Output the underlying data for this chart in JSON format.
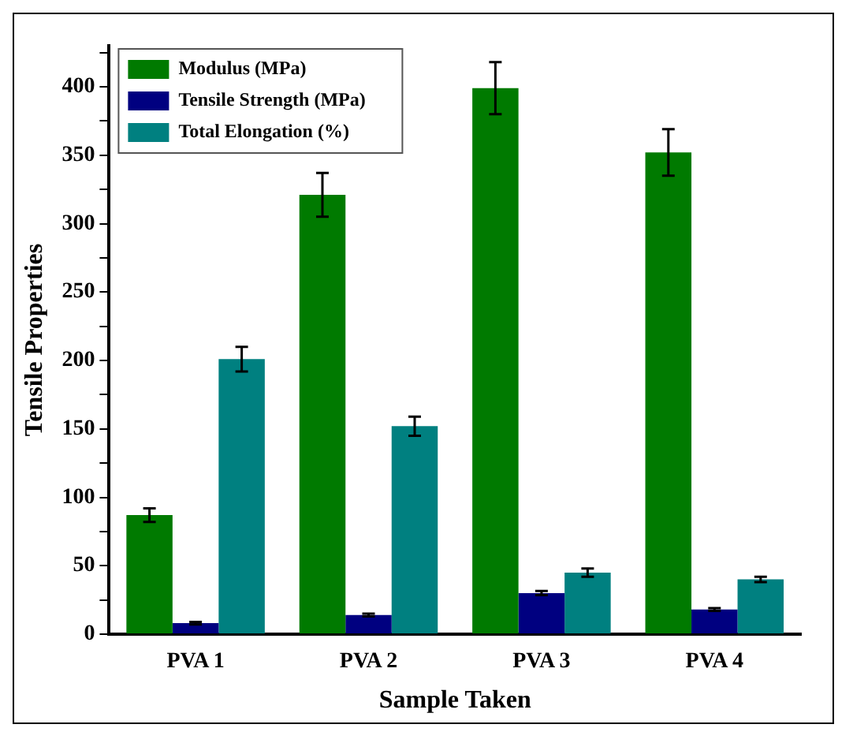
{
  "chart_data": {
    "type": "bar",
    "xlabel": "Sample Taken",
    "ylabel": "Tensile Properties",
    "categories": [
      "PVA 1",
      "PVA 2",
      "PVA 3",
      "PVA 4"
    ],
    "series": [
      {
        "name": "Modulus (MPa)",
        "color": "#007a00",
        "values": [
          87,
          321,
          399,
          352
        ],
        "errors": [
          5,
          16,
          19,
          17
        ]
      },
      {
        "name": "Tensile Strength (MPa)",
        "color": "#000080",
        "values": [
          8,
          14,
          30,
          18
        ],
        "errors": [
          1,
          1,
          1.5,
          1
        ]
      },
      {
        "name": "Total Elongation (%)",
        "color": "#008080",
        "values": [
          201,
          152,
          45,
          40
        ],
        "errors": [
          9,
          7,
          3,
          2
        ]
      }
    ],
    "ylim": [
      0,
      430
    ],
    "yticks": [
      0,
      {
        "value": 25,
        "label": null
      },
      50,
      {
        "value": 75,
        "label": null
      },
      100,
      {
        "value": 125,
        "label": null
      },
      150,
      {
        "value": 175,
        "label": null
      },
      200,
      {
        "value": 225,
        "label": null
      },
      250,
      {
        "value": 275,
        "label": null
      },
      300,
      {
        "value": 325,
        "label": null
      },
      350,
      {
        "value": 375,
        "label": null
      },
      400,
      {
        "value": 425,
        "label": null
      }
    ],
    "grid": false,
    "legend": "top left"
  }
}
